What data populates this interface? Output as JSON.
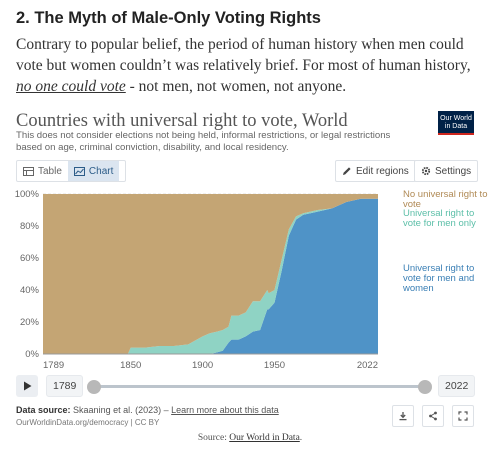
{
  "article": {
    "heading": "2. The Myth of Male-Only Voting Rights",
    "intro_before": "Contrary to popular belief, the period of human history when men could vote but women couldn’t was relatively brief. For most of human history, ",
    "intro_link": "no one could vote",
    "intro_after": " - not men, not women, not anyone."
  },
  "grapher": {
    "title": "Countries with universal right to vote, World",
    "subtitle": "This does not consider elections not being held, informal restrictions, or legal restrictions based on age, criminal conviction, disability, and local residency.",
    "logo_line1": "Our World",
    "logo_line2": "in Data",
    "tabs": {
      "table": "Table",
      "chart": "Chart"
    },
    "edit_regions": "Edit regions",
    "settings": "Settings",
    "source_label": "Data source:",
    "source_text": "Skaaning et al. (2023) –",
    "source_link": "Learn more about this data",
    "url_text": "OurWorldinData.org/democracy | CC BY",
    "timeline_start": "1789",
    "timeline_end": "2022"
  },
  "source_line": {
    "prefix": "Source:",
    "link": "Our World in Data",
    "suffix": "."
  },
  "colors": {
    "none": "#c4a574",
    "men_only": "#8fd3c4",
    "universal": "#4f93c7"
  },
  "chart_data": {
    "type": "area",
    "stacked": true,
    "percent": true,
    "title": "Countries with universal right to vote, World",
    "x_ticks": [
      1789,
      1850,
      1900,
      1950,
      2022
    ],
    "y_ticks": [
      "0%",
      "20%",
      "40%",
      "60%",
      "80%",
      "100%"
    ],
    "xlim": [
      1789,
      2022
    ],
    "ylim": [
      0,
      100
    ],
    "legend_placement": "right",
    "x": [
      1789,
      1840,
      1845,
      1848,
      1850,
      1860,
      1870,
      1880,
      1890,
      1900,
      1905,
      1910,
      1914,
      1918,
      1920,
      1925,
      1930,
      1935,
      1940,
      1945,
      1946,
      1950,
      1955,
      1960,
      1965,
      1970,
      1975,
      1980,
      1990,
      2000,
      2010,
      2022
    ],
    "series": [
      {
        "name": "Universal right to vote for men and women",
        "values": [
          0,
          0,
          0,
          0,
          0,
          0,
          0,
          0,
          0,
          0,
          0,
          1,
          2,
          7,
          9,
          9,
          11,
          14,
          15,
          28,
          28,
          32,
          52,
          74,
          84,
          87,
          88,
          89,
          91,
          95,
          97,
          97
        ]
      },
      {
        "name": "Universal right to vote for men only",
        "values": [
          0,
          0,
          0,
          0,
          4,
          4,
          5,
          5,
          6,
          11,
          13,
          13,
          13,
          10,
          15,
          15,
          15,
          19,
          18,
          12,
          10,
          8,
          7,
          4,
          2,
          1,
          1,
          1,
          0,
          0,
          0,
          0
        ]
      },
      {
        "name": "No universal right to vote",
        "values": [
          100,
          100,
          100,
          100,
          96,
          96,
          95,
          95,
          94,
          89,
          87,
          86,
          85,
          83,
          76,
          76,
          74,
          67,
          67,
          60,
          62,
          60,
          41,
          22,
          14,
          12,
          11,
          10,
          9,
          5,
          3,
          3
        ]
      }
    ]
  }
}
